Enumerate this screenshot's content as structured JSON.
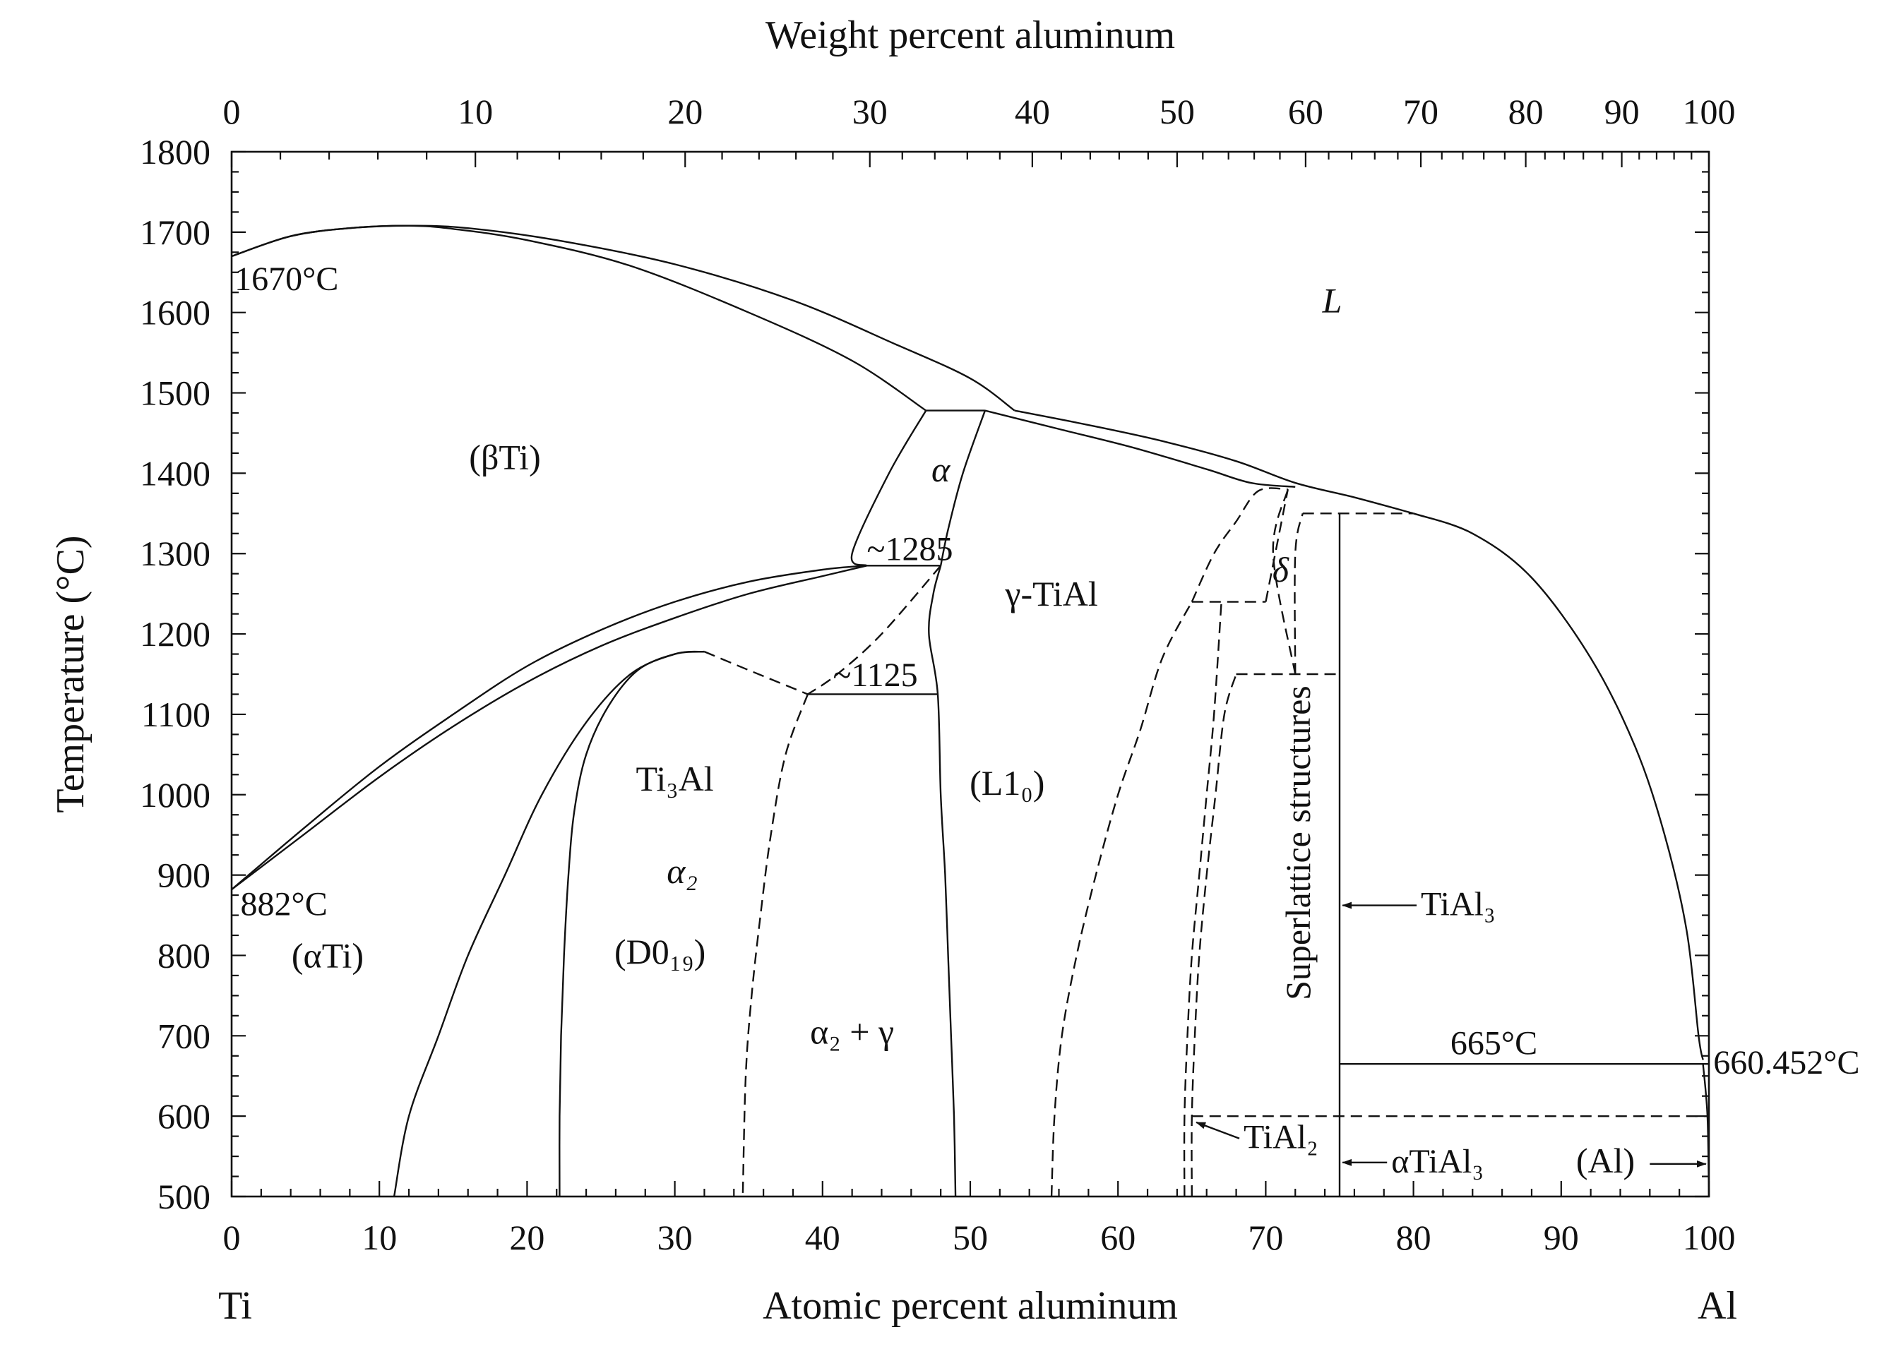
{
  "chart_data": {
    "type": "phase-diagram",
    "title": "",
    "x_axis_bottom": {
      "label": "Atomic percent aluminum",
      "range": [
        0,
        100
      ],
      "ticks": [
        0,
        10,
        20,
        30,
        40,
        50,
        60,
        70,
        80,
        90,
        100
      ],
      "end_labels": {
        "left": "Ti",
        "right": "Al"
      }
    },
    "x_axis_top": {
      "label": "Weight percent aluminum",
      "ticks": [
        {
          "label": "0",
          "at_pct": 0
        },
        {
          "label": "10",
          "at_pct": 16.5
        },
        {
          "label": "20",
          "at_pct": 30.7
        },
        {
          "label": "30",
          "at_pct": 43.2
        },
        {
          "label": "40",
          "at_pct": 54.2
        },
        {
          "label": "50",
          "at_pct": 64.0
        },
        {
          "label": "60",
          "at_pct": 72.7
        },
        {
          "label": "70",
          "at_pct": 80.5
        },
        {
          "label": "80",
          "at_pct": 87.6
        },
        {
          "label": "90",
          "at_pct": 94.1
        },
        {
          "label": "100",
          "at_pct": 100
        }
      ]
    },
    "y_axis": {
      "label": "Temperature (°C)",
      "range": [
        500,
        1800
      ],
      "ticks": [
        500,
        600,
        700,
        800,
        900,
        1000,
        1100,
        1200,
        1300,
        1400,
        1500,
        1600,
        1700,
        1800
      ]
    },
    "solid_lines": [
      {
        "name": "liquidus-ti-side",
        "points": [
          [
            0,
            1670
          ],
          [
            4,
            1695
          ],
          [
            8,
            1705
          ],
          [
            12,
            1708
          ],
          [
            16,
            1705
          ],
          [
            22,
            1690
          ],
          [
            30,
            1660
          ],
          [
            38,
            1615
          ],
          [
            45,
            1560
          ],
          [
            50,
            1518
          ],
          [
            53,
            1478
          ]
        ]
      },
      {
        "name": "solidus-beta",
        "points": [
          [
            0,
            1670
          ],
          [
            4,
            1695
          ],
          [
            8,
            1705
          ],
          [
            12,
            1708
          ],
          [
            15,
            1704
          ],
          [
            20,
            1690
          ],
          [
            27,
            1658
          ],
          [
            35,
            1600
          ],
          [
            42,
            1540
          ],
          [
            47,
            1478
          ]
        ]
      },
      {
        "name": "peritectic-1490",
        "points": [
          [
            47,
            1478
          ],
          [
            51,
            1478
          ]
        ]
      },
      {
        "name": "alpha-beta-left",
        "points": [
          [
            47,
            1478
          ],
          [
            44.5,
            1400
          ],
          [
            42,
            1300
          ],
          [
            43,
            1285
          ]
        ]
      },
      {
        "name": "alpha-gamma-right",
        "points": [
          [
            51,
            1478
          ],
          [
            49.5,
            1400
          ],
          [
            48.5,
            1330
          ],
          [
            48,
            1285
          ]
        ]
      },
      {
        "name": "liquidus-gamma",
        "points": [
          [
            53,
            1478
          ],
          [
            58,
            1460
          ],
          [
            63,
            1440
          ],
          [
            68,
            1415
          ],
          [
            72,
            1388
          ],
          [
            76,
            1370
          ],
          [
            80,
            1350
          ]
        ]
      },
      {
        "name": "solidus-gamma",
        "points": [
          [
            51,
            1478
          ],
          [
            56,
            1455
          ],
          [
            61,
            1432
          ],
          [
            66,
            1405
          ],
          [
            69,
            1388
          ],
          [
            72,
            1383
          ]
        ]
      },
      {
        "name": "liquidus-al-side",
        "points": [
          [
            80,
            1350
          ],
          [
            84,
            1325
          ],
          [
            88,
            1270
          ],
          [
            92,
            1170
          ],
          [
            95,
            1060
          ],
          [
            97,
            950
          ],
          [
            98.5,
            830
          ],
          [
            99.3,
            700
          ],
          [
            99.6,
            670
          ]
        ]
      },
      {
        "name": "beta-transus-upper",
        "points": [
          [
            0,
            882
          ],
          [
            5,
            960
          ],
          [
            10,
            1035
          ],
          [
            15,
            1100
          ],
          [
            20,
            1160
          ],
          [
            25,
            1205
          ],
          [
            30,
            1240
          ],
          [
            35,
            1265
          ],
          [
            40,
            1280
          ],
          [
            43,
            1285
          ]
        ]
      },
      {
        "name": "beta-transus-lower",
        "points": [
          [
            0,
            882
          ],
          [
            5,
            952
          ],
          [
            10,
            1022
          ],
          [
            15,
            1085
          ],
          [
            20,
            1140
          ],
          [
            25,
            1185
          ],
          [
            30,
            1220
          ],
          [
            35,
            1250
          ],
          [
            40,
            1272
          ],
          [
            43,
            1285
          ]
        ]
      },
      {
        "name": "eutectoid-1285",
        "points": [
          [
            43,
            1285
          ],
          [
            48,
            1285
          ]
        ]
      },
      {
        "name": "alpha-alpha2-boundary",
        "points": [
          [
            11,
            500
          ],
          [
            12,
            600
          ],
          [
            14,
            700
          ],
          [
            16,
            800
          ],
          [
            18.5,
            900
          ],
          [
            21,
            1000
          ],
          [
            24,
            1090
          ],
          [
            27,
            1150
          ],
          [
            30,
            1175
          ],
          [
            32,
            1178
          ]
        ]
      },
      {
        "name": "alpha2-left-boundary",
        "points": [
          [
            22.2,
            500
          ],
          [
            22.2,
            600
          ],
          [
            22.3,
            700
          ],
          [
            22.5,
            800
          ],
          [
            22.8,
            900
          ],
          [
            23.2,
            980
          ],
          [
            24,
            1050
          ],
          [
            25.5,
            1110
          ],
          [
            27.5,
            1155
          ],
          [
            30,
            1175
          ],
          [
            32,
            1178
          ]
        ]
      },
      {
        "name": "eutectoid-1125",
        "points": [
          [
            39,
            1125
          ],
          [
            47.8,
            1125
          ]
        ]
      },
      {
        "name": "gamma-left-boundary",
        "points": [
          [
            48,
            1285
          ],
          [
            47.5,
            1250
          ],
          [
            47.2,
            1200
          ],
          [
            47.8,
            1125
          ],
          [
            48,
            1000
          ],
          [
            48.3,
            900
          ],
          [
            48.5,
            800
          ],
          [
            48.7,
            700
          ],
          [
            48.9,
            600
          ],
          [
            49,
            500
          ]
        ]
      },
      {
        "name": "tial3-line",
        "points": [
          [
            75,
            500
          ],
          [
            75,
            1350
          ]
        ]
      },
      {
        "name": "peritectic-665",
        "points": [
          [
            75,
            665
          ],
          [
            100,
            665
          ]
        ]
      },
      {
        "name": "al-solvus",
        "points": [
          [
            99.6,
            665
          ],
          [
            99.9,
            600
          ],
          [
            100,
            500
          ]
        ]
      }
    ],
    "dashed_lines": [
      {
        "name": "gamma-alpha-dashed",
        "points": [
          [
            48,
            1285
          ],
          [
            44,
            1200
          ],
          [
            41,
            1150
          ],
          [
            39,
            1125
          ]
        ]
      },
      {
        "name": "alpha2-gamma-dashed",
        "points": [
          [
            39,
            1125
          ],
          [
            37.5,
            1050
          ],
          [
            36.5,
            950
          ],
          [
            35.8,
            850
          ],
          [
            35.2,
            750
          ],
          [
            34.8,
            650
          ],
          [
            34.6,
            500
          ]
        ]
      },
      {
        "name": "alpha2-top-dashed",
        "points": [
          [
            32,
            1178
          ],
          [
            35,
            1155
          ],
          [
            39,
            1125
          ]
        ]
      },
      {
        "name": "gamma-right-dashed",
        "points": [
          [
            55.5,
            500
          ],
          [
            55.7,
            600
          ],
          [
            56.2,
            700
          ],
          [
            57.2,
            800
          ],
          [
            58.5,
            900
          ],
          [
            60,
            1000
          ],
          [
            61.5,
            1080
          ],
          [
            63,
            1170
          ],
          [
            65,
            1240
          ]
        ]
      },
      {
        "name": "tial2-left-dashed",
        "points": [
          [
            64.5,
            500
          ],
          [
            64.5,
            600
          ],
          [
            64.7,
            700
          ],
          [
            65,
            800
          ],
          [
            65.5,
            900
          ],
          [
            66,
            1000
          ],
          [
            66.5,
            1100
          ],
          [
            67,
            1240
          ]
        ]
      },
      {
        "name": "tial2-right-dashed",
        "points": [
          [
            65,
            500
          ],
          [
            65,
            600
          ],
          [
            65.2,
            700
          ],
          [
            65.5,
            800
          ],
          [
            66,
            900
          ],
          [
            66.6,
            1000
          ],
          [
            67.2,
            1100
          ],
          [
            68,
            1150
          ]
        ]
      },
      {
        "name": "gamma-l-dashed",
        "points": [
          [
            65,
            1240
          ],
          [
            66.5,
            1300
          ],
          [
            68,
            1340
          ],
          [
            69.5,
            1378
          ],
          [
            71.5,
            1380
          ]
        ]
      },
      {
        "name": "dashed-1240",
        "points": [
          [
            65,
            1240
          ],
          [
            70,
            1240
          ]
        ]
      },
      {
        "name": "dashed-1150",
        "points": [
          [
            68,
            1150
          ],
          [
            75,
            1150
          ]
        ]
      },
      {
        "name": "delta-left-dashed",
        "points": [
          [
            70,
            1240
          ],
          [
            71.5,
            1380
          ]
        ]
      },
      {
        "name": "delta-mid-dashed",
        "points": [
          [
            72,
            1150
          ],
          [
            70.5,
            1300
          ],
          [
            71.5,
            1380
          ]
        ]
      },
      {
        "name": "delta-right-dashed",
        "points": [
          [
            72,
            1150
          ],
          [
            72,
            1300
          ],
          [
            72.5,
            1350
          ]
        ]
      },
      {
        "name": "dashed-1350",
        "points": [
          [
            72.5,
            1350
          ],
          [
            80,
            1350
          ]
        ]
      },
      {
        "name": "dashed-600",
        "points": [
          [
            65,
            600
          ],
          [
            100,
            600
          ]
        ]
      }
    ],
    "regions": [
      {
        "label": "L",
        "at": [
          74.5,
          1600
        ],
        "italic": true
      },
      {
        "label": "(βTi)",
        "at": [
          18.5,
          1405
        ]
      },
      {
        "label": "α",
        "at": [
          48,
          1390
        ],
        "italic": true
      },
      {
        "label": "γ-TiAl",
        "at": [
          55.5,
          1235
        ]
      },
      {
        "label": "δ",
        "at": [
          71,
          1265
        ],
        "italic": true
      },
      {
        "label": "Ti₃Al",
        "at": [
          30,
          1005
        ]
      },
      {
        "label": "α₂",
        "at": [
          30.5,
          890
        ],
        "italic": true
      },
      {
        "label": "(D0₁₉)",
        "at": [
          29,
          790
        ]
      },
      {
        "label": "(L1₀)",
        "at": [
          52.5,
          1000
        ]
      },
      {
        "label": "(αTi)",
        "at": [
          6.5,
          785
        ]
      },
      {
        "label": "α₂ + γ",
        "at": [
          42,
          690
        ]
      },
      {
        "label": "Superlattice structures",
        "at": [
          73,
          940
        ],
        "rotate": true
      },
      {
        "label": "(Al)",
        "at": [
          93,
          530
        ]
      }
    ],
    "annotations": [
      {
        "text": "1670°C",
        "at": [
          0.2,
          1628
        ]
      },
      {
        "text": "882°C",
        "at": [
          0.6,
          850
        ]
      },
      {
        "text": "~1285",
        "at": [
          43,
          1292
        ]
      },
      {
        "text": "~1125",
        "at": [
          40.7,
          1135
        ]
      },
      {
        "text": "665°C",
        "at": [
          82.5,
          677
        ]
      },
      {
        "text": "660.452°C",
        "at": [
          100.3,
          653
        ]
      },
      {
        "text": "TiAl₃",
        "at": [
          80.5,
          850
        ],
        "arrow_to": [
          75.2,
          850
        ]
      },
      {
        "text": "TiAl₂",
        "at": [
          68.5,
          560
        ],
        "arrow_to": [
          65.3,
          580
        ]
      },
      {
        "text": "αTiAl₃",
        "at": [
          78.5,
          530
        ],
        "arrow_to": [
          75.2,
          530
        ]
      },
      {
        "text": "→",
        "at": [
          96,
          530
        ],
        "arrow_to": [
          99.8,
          530
        ]
      }
    ]
  }
}
